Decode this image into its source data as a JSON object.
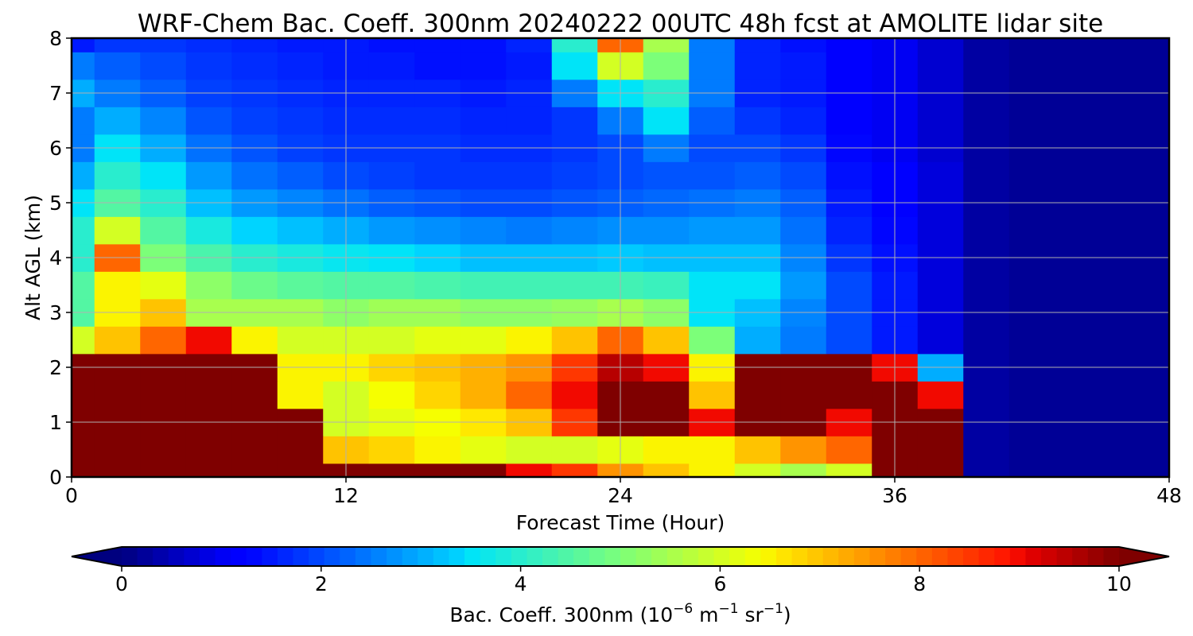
{
  "chart_data": {
    "type": "heatmap",
    "title": "WRF-Chem Bac. Coeff. 300nm  20240222 00UTC 48h fcst at AMOLITE lidar site",
    "xlabel": "Forecast Time (Hour)",
    "ylabel": "Alt AGL (km)",
    "xlim": [
      0,
      48
    ],
    "ylim": [
      0,
      8
    ],
    "xticks": [
      "0",
      "12",
      "24",
      "36",
      "48"
    ],
    "yticks": [
      "0",
      "1",
      "2",
      "3",
      "4",
      "5",
      "6",
      "7",
      "8"
    ],
    "grid": true,
    "colormap": "jet",
    "colorbar": {
      "label_prefix": "Bac. Coeff. 300nm  (10",
      "label_exp1": "−6",
      "label_mid": " m",
      "label_exp2": "−1",
      "label_mid2": " sr",
      "label_exp3": "−1",
      "label_suffix": ")",
      "min": 0,
      "max": 10,
      "extend": "both",
      "ticks": [
        "0",
        "2",
        "4",
        "6",
        "8",
        "10"
      ]
    },
    "x": [
      0,
      2,
      4,
      6,
      8,
      10,
      12,
      14,
      16,
      18,
      20,
      22,
      24,
      26,
      28,
      30,
      32,
      34,
      36,
      38,
      40,
      42,
      44,
      46,
      48
    ],
    "y": [
      0,
      0.5,
      1,
      1.5,
      2,
      2.5,
      3,
      3.5,
      4,
      4.5,
      5,
      5.5,
      6,
      6.5,
      7,
      7.5,
      8
    ],
    "z": [
      [
        10,
        10,
        10,
        10,
        10,
        10,
        10,
        10,
        10,
        10,
        9,
        8.5,
        7.5,
        7,
        6.5,
        6,
        5.5,
        6,
        10,
        10,
        0.3,
        0.2,
        0.2,
        0.2,
        0.2
      ],
      [
        10,
        10,
        10,
        10,
        10,
        10,
        7,
        6.8,
        6.5,
        6.2,
        6,
        6,
        6.2,
        6.5,
        6.5,
        7,
        7.5,
        8,
        10,
        10,
        0.3,
        0.2,
        0.2,
        0.2,
        0.2
      ],
      [
        10,
        10,
        10,
        10,
        10,
        10,
        6,
        6.2,
        6.4,
        6.6,
        7,
        8.5,
        10,
        10,
        9,
        10,
        10,
        9,
        10,
        10,
        0.3,
        0.2,
        0.2,
        0.2,
        0.2
      ],
      [
        10,
        10,
        10,
        10,
        10,
        6.5,
        6,
        6.4,
        6.8,
        7.2,
        8,
        9,
        10,
        10,
        7,
        10,
        10,
        10,
        10,
        9,
        0.3,
        0.2,
        0.2,
        0.2,
        0.2
      ],
      [
        10,
        10,
        10,
        10,
        10,
        6.5,
        6.5,
        6.8,
        7,
        7.2,
        7.5,
        8.5,
        9.5,
        9,
        6.5,
        10,
        10,
        10,
        9,
        3,
        0.3,
        0.2,
        0.2,
        0.2,
        0.2
      ],
      [
        6,
        7,
        8,
        9,
        6.5,
        6,
        6,
        6,
        6.2,
        6.2,
        6.5,
        7,
        8,
        7,
        5,
        3,
        2.5,
        2,
        1.5,
        0.8,
        0.3,
        0.2,
        0.2,
        0.2,
        0.2
      ],
      [
        4.5,
        6.5,
        7,
        5.5,
        5.5,
        5.5,
        5.2,
        5.4,
        5.4,
        5.2,
        5.2,
        5.3,
        5.5,
        5.2,
        3.5,
        3.2,
        2.6,
        2,
        1.5,
        0.8,
        0.3,
        0.2,
        0.2,
        0.2,
        0.2
      ],
      [
        4.5,
        6.5,
        6.2,
        5.2,
        4.8,
        4.6,
        4.5,
        4.5,
        4.4,
        4.3,
        4.3,
        4.3,
        4.3,
        4.2,
        3.5,
        3.5,
        2.8,
        2,
        1.5,
        0.8,
        0.3,
        0.2,
        0.2,
        0.2,
        0.2
      ],
      [
        4,
        8,
        5,
        4.4,
        4,
        3.8,
        3.6,
        3.5,
        3.4,
        3.2,
        3.2,
        3.2,
        3.3,
        3.2,
        3.2,
        3.2,
        2.6,
        1.8,
        1.4,
        0.8,
        0.3,
        0.2,
        0.2,
        0.2,
        0.2
      ],
      [
        4,
        6,
        4.5,
        3.8,
        3.4,
        3.2,
        3,
        2.8,
        2.7,
        2.6,
        2.5,
        2.6,
        2.7,
        2.7,
        2.8,
        2.8,
        2.4,
        1.6,
        1.3,
        0.8,
        0.3,
        0.2,
        0.2,
        0.2,
        0.2
      ],
      [
        3.5,
        4.5,
        4,
        3.2,
        2.8,
        2.6,
        2.4,
        2.2,
        2.1,
        2,
        2,
        2.1,
        2.2,
        2.3,
        2.4,
        2.5,
        2.2,
        1.5,
        1.2,
        0.8,
        0.3,
        0.2,
        0.2,
        0.2,
        0.2
      ],
      [
        3,
        4,
        3.5,
        2.8,
        2.4,
        2.2,
        2,
        1.9,
        1.8,
        1.8,
        1.8,
        1.9,
        2,
        2.1,
        2.1,
        2.2,
        2,
        1.4,
        1.1,
        0.8,
        0.3,
        0.2,
        0.2,
        0.2,
        0.2
      ],
      [
        2.5,
        3.5,
        3,
        2.4,
        2.1,
        1.9,
        1.8,
        1.8,
        1.8,
        1.7,
        1.7,
        1.8,
        2,
        2.5,
        2,
        2,
        1.8,
        1.3,
        1,
        0.7,
        0.3,
        0.2,
        0.2,
        0.2,
        0.2
      ],
      [
        2.5,
        3,
        2.6,
        2.1,
        1.9,
        1.8,
        1.7,
        1.7,
        1.7,
        1.6,
        1.6,
        1.8,
        2.5,
        3.5,
        2.2,
        1.8,
        1.6,
        1.2,
        1,
        0.7,
        0.3,
        0.2,
        0.2,
        0.2,
        0.2
      ],
      [
        3,
        2.5,
        2.2,
        1.9,
        1.8,
        1.7,
        1.6,
        1.6,
        1.6,
        1.5,
        1.6,
        2.5,
        3.5,
        4,
        2.5,
        1.6,
        1.5,
        1.2,
        1,
        0.7,
        0.3,
        0.2,
        0.2,
        0.2,
        0.2
      ],
      [
        2.5,
        2.2,
        2,
        1.8,
        1.7,
        1.6,
        1.5,
        1.5,
        1.4,
        1.4,
        1.5,
        3.5,
        6,
        5,
        2.5,
        1.6,
        1.5,
        1.2,
        1,
        0.7,
        0.3,
        0.2,
        0.2,
        0.2,
        0.2
      ],
      [
        1.5,
        1.8,
        1.8,
        1.7,
        1.6,
        1.5,
        1.5,
        1.4,
        1.4,
        1.4,
        1.6,
        4,
        8,
        5.5,
        2.5,
        1.6,
        1.4,
        1.2,
        1,
        0.7,
        0.3,
        0.2,
        0.2,
        0.2,
        0.2
      ]
    ]
  }
}
